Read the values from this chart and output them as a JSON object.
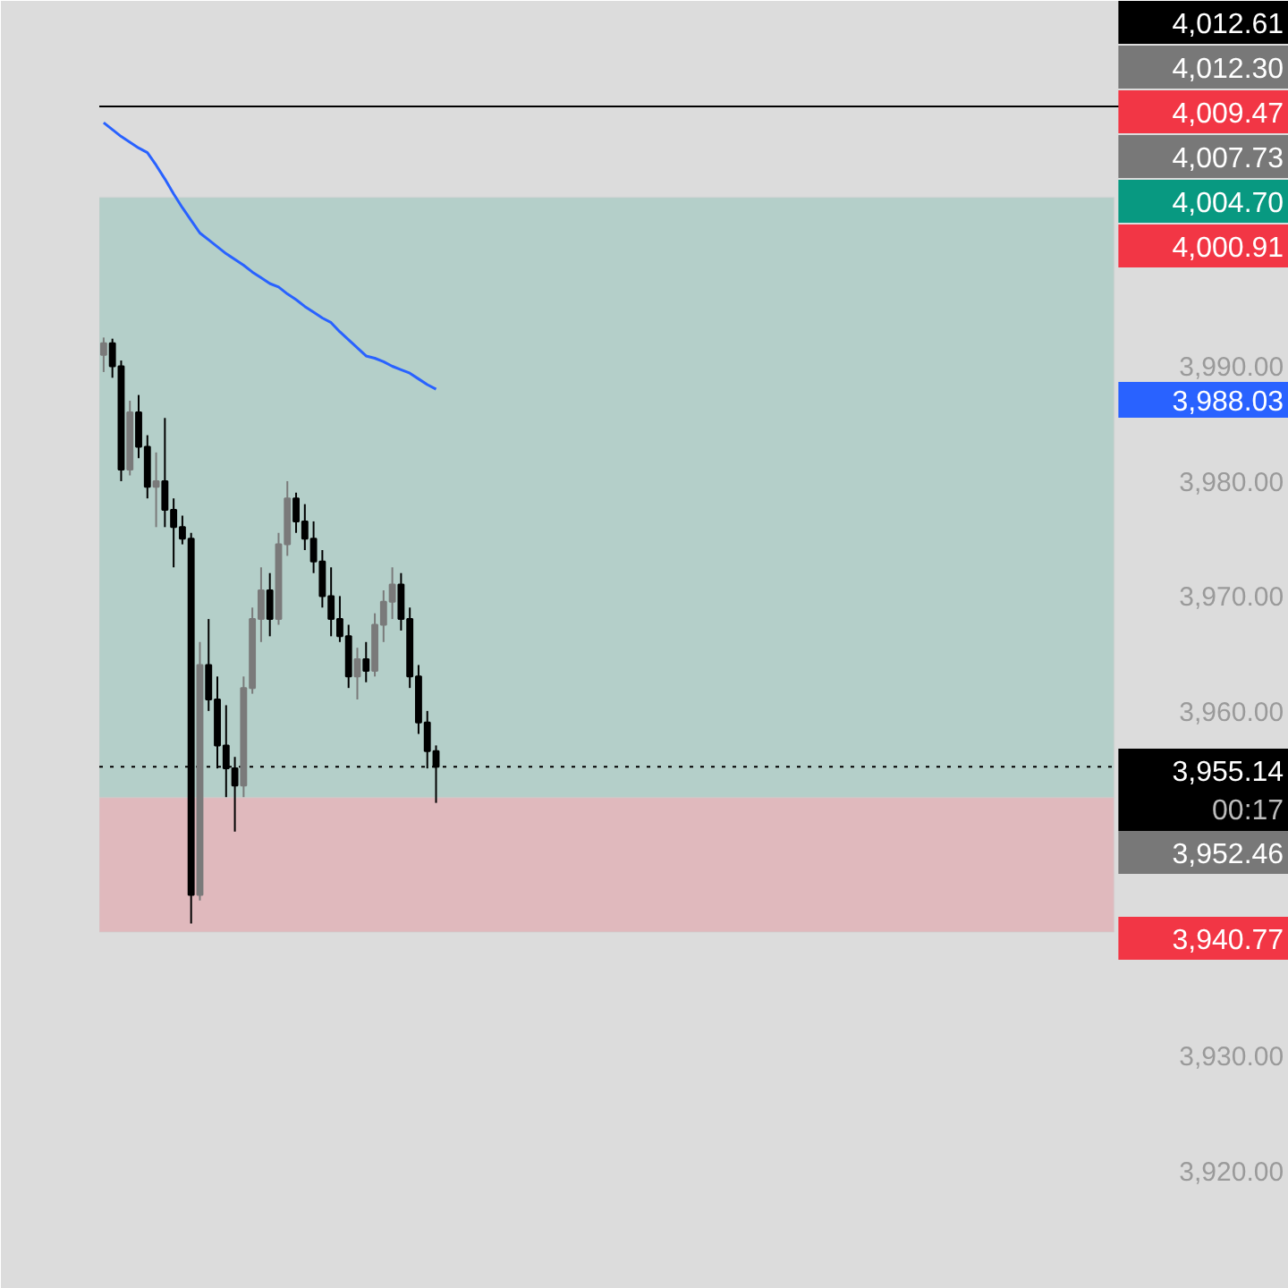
{
  "chart_data": {
    "type": "candlestick",
    "categories": [
      null,
      null,
      null,
      null,
      null,
      null,
      null,
      null,
      null,
      null,
      null,
      null,
      null,
      null,
      null,
      null,
      null,
      null,
      null,
      null,
      null,
      null,
      null,
      null,
      null,
      null,
      null,
      null,
      null,
      null,
      null,
      null,
      null,
      null,
      null,
      null,
      null,
      null,
      null,
      null,
      null,
      null,
      null,
      null,
      null,
      null,
      null,
      null,
      null,
      null,
      null,
      null,
      null,
      null,
      null,
      null,
      null,
      null,
      null,
      null,
      null,
      null,
      null,
      null,
      null,
      null,
      null,
      null,
      null,
      null,
      null,
      null,
      null,
      null,
      null,
      null,
      null,
      null,
      null,
      null,
      null,
      null,
      null,
      null,
      null,
      null,
      null,
      null,
      null,
      null,
      null,
      null,
      null,
      null,
      null,
      null,
      null,
      null,
      null,
      null,
      null,
      null,
      null,
      null,
      null,
      null,
      null,
      null,
      null,
      null,
      null,
      null,
      null,
      null,
      null,
      null,
      null,
      null,
      null,
      null,
      null,
      null,
      null,
      null,
      null,
      null,
      null,
      null,
      null,
      null,
      null,
      null,
      null,
      null,
      null,
      null
    ],
    "ohlc": [
      [
        3991.0,
        3992.5,
        3989.5,
        3992.0
      ],
      [
        3992.0,
        3992.4,
        3989.0,
        3990.0
      ],
      [
        3990.0,
        3990.5,
        3980.0,
        3981.0
      ],
      [
        3981.0,
        3987.0,
        3980.5,
        3986.0
      ],
      [
        3986.0,
        3987.5,
        3982.0,
        3983.0
      ],
      [
        3983.0,
        3984.0,
        3978.5,
        3979.5
      ],
      [
        3979.5,
        3982.5,
        3976.0,
        3980.0
      ],
      [
        3980.0,
        3985.5,
        3976.0,
        3977.5
      ],
      [
        3977.5,
        3978.5,
        3972.5,
        3976.0
      ],
      [
        3976.0,
        3977.0,
        3974.5,
        3975.0
      ],
      [
        3975.0,
        3975.5,
        3941.5,
        3944.0
      ],
      [
        3944.0,
        3966.0,
        3943.5,
        3964.0
      ],
      [
        3964.0,
        3968.0,
        3960.0,
        3961.0
      ],
      [
        3961.0,
        3963.0,
        3955.0,
        3957.0
      ],
      [
        3957.0,
        3960.5,
        3952.5,
        3955.0
      ],
      [
        3955.0,
        3956.0,
        3949.5,
        3953.5
      ],
      [
        3953.5,
        3963.0,
        3952.5,
        3962.0
      ],
      [
        3962.0,
        3969.0,
        3961.5,
        3968.0
      ],
      [
        3968.0,
        3972.5,
        3966.0,
        3970.5
      ],
      [
        3970.5,
        3972.0,
        3966.5,
        3968.0
      ],
      [
        3968.0,
        3975.5,
        3967.5,
        3974.5
      ],
      [
        3974.5,
        3980.0,
        3973.5,
        3978.5
      ],
      [
        3978.5,
        3979.0,
        3975.5,
        3976.5
      ],
      [
        3976.5,
        3978.0,
        3974.0,
        3975.0
      ],
      [
        3975.0,
        3976.5,
        3972.0,
        3973.0
      ],
      [
        3973.0,
        3974.0,
        3969.0,
        3970.0
      ],
      [
        3970.0,
        3972.5,
        3966.5,
        3968.0
      ],
      [
        3968.0,
        3970.0,
        3966.0,
        3966.5
      ],
      [
        3966.5,
        3967.5,
        3962.0,
        3963.0
      ],
      [
        3963.0,
        3965.5,
        3961.0,
        3964.5
      ],
      [
        3964.5,
        3966.0,
        3962.5,
        3963.5
      ],
      [
        3963.5,
        3968.5,
        3963.0,
        3967.5
      ],
      [
        3967.5,
        3970.5,
        3966.0,
        3969.5
      ],
      [
        3969.5,
        3972.5,
        3968.0,
        3971.0
      ],
      [
        3971.0,
        3972.0,
        3967.0,
        3968.0
      ],
      [
        3968.0,
        3969.0,
        3962.0,
        3963.0
      ],
      [
        3963.0,
        3964.0,
        3958.0,
        3959.0
      ],
      [
        3959.0,
        3960.0,
        3955.0,
        3956.5
      ],
      [
        3956.5,
        3957.0,
        3952.0,
        3955.14
      ],
      null,
      null,
      null,
      null,
      null,
      null,
      null,
      null,
      null,
      null,
      null,
      null,
      null,
      null,
      null,
      null,
      null,
      null,
      null,
      null,
      null,
      null,
      null,
      null,
      null,
      null,
      null,
      null,
      null,
      null,
      null,
      null,
      null,
      null,
      null,
      null,
      null,
      null,
      null,
      null,
      null,
      null,
      null,
      null,
      null,
      null,
      null,
      null,
      null,
      null,
      null,
      null,
      null,
      null,
      null,
      null,
      null,
      null,
      null,
      null,
      null,
      null,
      null,
      null,
      null,
      null,
      null,
      null,
      null,
      null,
      null,
      null,
      null,
      null,
      null,
      null,
      null,
      null,
      null,
      null,
      null,
      null,
      null,
      null,
      null,
      null,
      null,
      null,
      null,
      null,
      null,
      null,
      null,
      null,
      null,
      null,
      null
    ],
    "series": [
      {
        "type": "line",
        "color": "#2962ff",
        "values": [
          4011.2,
          4010.6,
          4010.0,
          4009.5,
          4009.0,
          4008.6,
          4007.5,
          4006.3,
          4005.0,
          4003.8,
          4002.7,
          4001.6,
          4001.0,
          4000.4,
          3999.8,
          3999.3,
          3998.8,
          3998.2,
          3997.7,
          3997.2,
          3996.9,
          3996.3,
          3995.8,
          3995.2,
          3994.7,
          3994.2,
          3993.8,
          3993.0,
          3992.3,
          3991.6,
          3990.9,
          3990.7,
          3990.4,
          3990.0,
          3989.7,
          3989.4,
          3988.9,
          3988.4,
          3988.0,
          null,
          null,
          null,
          null,
          null,
          null,
          null,
          null,
          null,
          null,
          null,
          null,
          null,
          null,
          null,
          null,
          null,
          null,
          null,
          null,
          null,
          null,
          null,
          null,
          null,
          null,
          null,
          null,
          null,
          null,
          null,
          null,
          null,
          null,
          null,
          null,
          null,
          null,
          null,
          null,
          null,
          null,
          null,
          null,
          null,
          null,
          null,
          null,
          null,
          null,
          null,
          null,
          null,
          null,
          null,
          null,
          null,
          null,
          null,
          null,
          null,
          null,
          null,
          null,
          null,
          null,
          null,
          null,
          null,
          null,
          null,
          null,
          null,
          null,
          null,
          null,
          null,
          null,
          null,
          null,
          null,
          null,
          null,
          null,
          null,
          null,
          null,
          null,
          null,
          null,
          null,
          null,
          null,
          null,
          null,
          null,
          null
        ]
      }
    ],
    "ylim": [
      3909.7,
      4021.8
    ],
    "yticks": [
      {
        "value": 3920,
        "label": "3,920.00"
      },
      {
        "value": 3930,
        "label": "3,930.00"
      },
      {
        "value": 3960,
        "label": "3,960.00"
      },
      {
        "value": 3970,
        "label": "3,970.00"
      },
      {
        "value": 3980,
        "label": "3,980.00"
      },
      {
        "value": 3990,
        "label": "3,990.00"
      }
    ],
    "ref_lines": [
      {
        "axis": "y",
        "value": 4012.61,
        "color": "#000000",
        "line_style": "solid"
      },
      {
        "axis": "y",
        "value": 3955.14,
        "color": "#000000",
        "line_style": "dotted"
      }
    ],
    "bands": [
      {
        "axis": "y",
        "from": 3952.46,
        "to": 4004.7,
        "color": "#b4cfc9"
      },
      {
        "axis": "y",
        "from": 3940.77,
        "to": 3952.46,
        "color": "#e0b9bd"
      }
    ],
    "annotations": [
      "4,012.61",
      "4,012.30",
      "4,009.47",
      "4,007.73",
      "4,004.70",
      "4,000.91",
      "3,988.03",
      "3,955.14",
      "00:17",
      "3,952.46",
      "3,940.77"
    ],
    "grid": false
  }
}
